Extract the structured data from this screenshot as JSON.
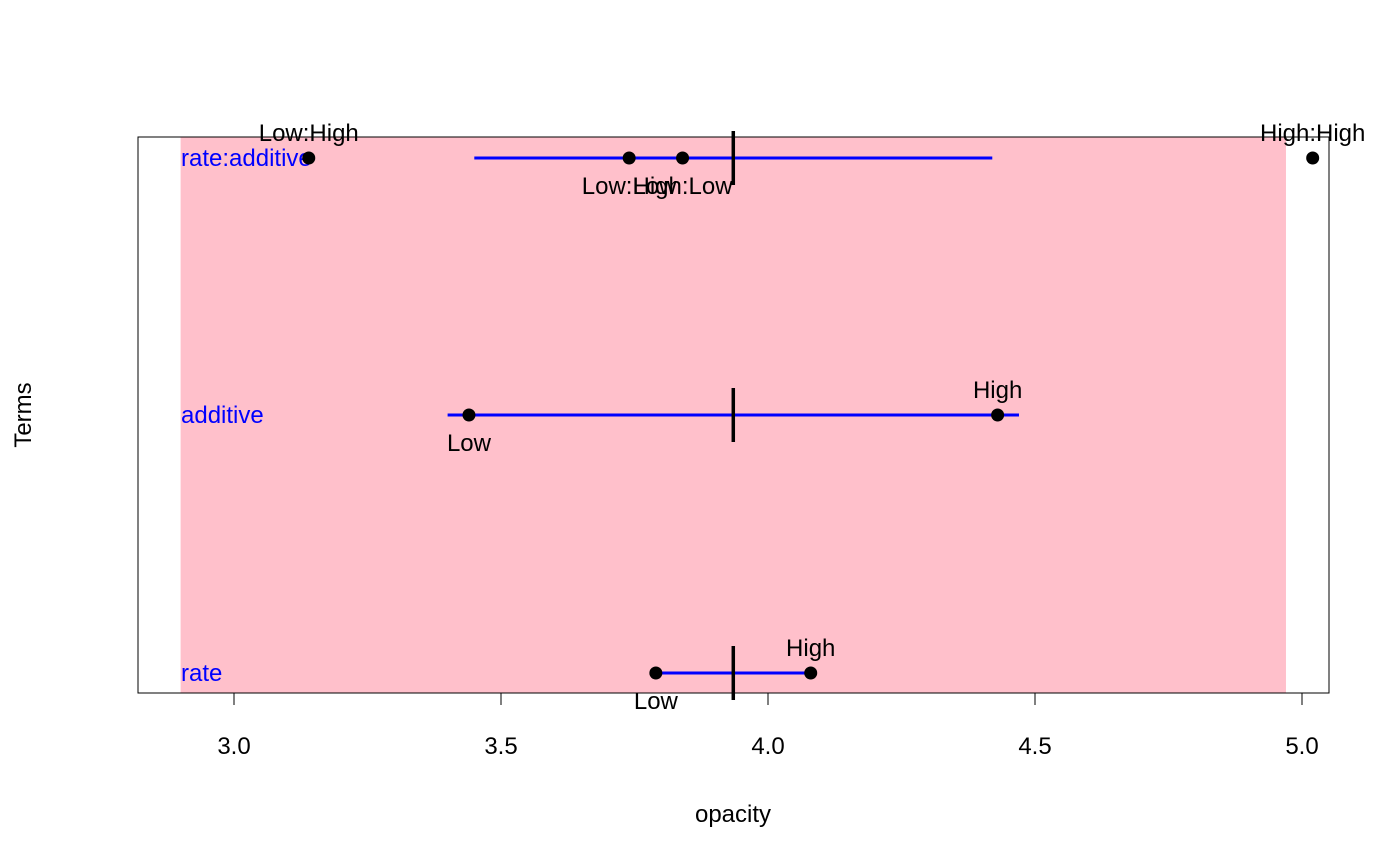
{
  "chart_data": {
    "type": "scatter",
    "xlabel": "opacity",
    "ylabel": "Terms",
    "xlim": [
      2.9,
      4.97
    ],
    "x_ticks": [
      "3.0",
      "3.5",
      "4.0",
      "4.5",
      "5.0"
    ],
    "x_tick_values": [
      3.0,
      3.5,
      4.0,
      4.5,
      5.0
    ],
    "grand_mean": 3.935,
    "colors": {
      "panel": "#ffc0cb",
      "interval": "#0000ff",
      "term_label": "#0000ff",
      "points": "#000000"
    },
    "terms": [
      {
        "name": "rate",
        "interval": [
          3.79,
          4.08
        ],
        "levels": [
          {
            "label": "Low",
            "x": 3.79,
            "label_pos": "below"
          },
          {
            "label": "High",
            "x": 4.08,
            "label_pos": "above"
          }
        ]
      },
      {
        "name": "additive",
        "interval": [
          3.4,
          4.47
        ],
        "levels": [
          {
            "label": "Low",
            "x": 3.44,
            "label_pos": "below"
          },
          {
            "label": "High",
            "x": 4.43,
            "label_pos": "above"
          }
        ]
      },
      {
        "name": "rate:additive",
        "interval": [
          3.45,
          4.42
        ],
        "levels": [
          {
            "label": "Low:High",
            "x": 3.14,
            "label_pos": "above"
          },
          {
            "label": "Low:Low",
            "x": 3.74,
            "label_pos": "below"
          },
          {
            "label": "High:Low",
            "x": 3.84,
            "label_pos": "below"
          },
          {
            "label": "High:High",
            "x": 5.02,
            "label_pos": "above"
          }
        ]
      }
    ]
  }
}
